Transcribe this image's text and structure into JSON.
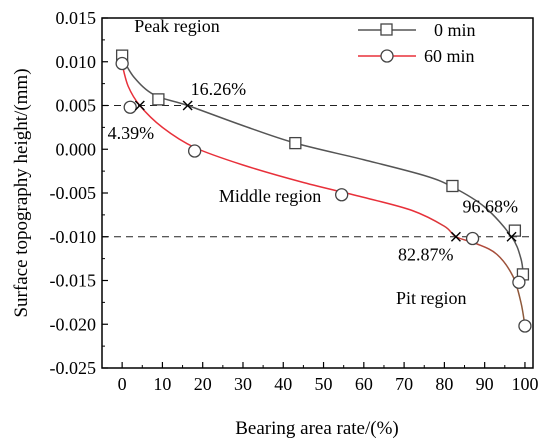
{
  "chart_data": {
    "type": "scatter",
    "xlabel": "Bearing area rate/(%)",
    "ylabel": "Surface topography height/(mm)",
    "xlim": [
      -5,
      102
    ],
    "ylim": [
      -0.025,
      0.015
    ],
    "xticks": [
      0,
      10,
      20,
      30,
      40,
      50,
      60,
      70,
      80,
      90,
      100
    ],
    "yticks": [
      0.015,
      0.01,
      0.005,
      0.0,
      -0.005,
      -0.01,
      -0.015,
      -0.02,
      -0.025
    ],
    "ytick_labels": [
      "0.015",
      "0.010",
      "0.005",
      "0.000",
      "-0.005",
      "-0.010",
      "-0.015",
      "-0.020",
      "-0.025"
    ],
    "grid": false,
    "legend": {
      "position": "top-right"
    },
    "reference_lines": [
      0.005,
      -0.01
    ],
    "series": [
      {
        "name": "0 min",
        "marker": "square",
        "color": "#555555",
        "points": [
          [
            0,
            0.0107
          ],
          [
            9,
            0.0057
          ],
          [
            43,
            0.0007
          ],
          [
            82,
            -0.0042
          ],
          [
            97.5,
            -0.0093
          ],
          [
            99.5,
            -0.0143
          ]
        ],
        "curve": [
          [
            0,
            0.0105
          ],
          [
            3,
            0.0082
          ],
          [
            8,
            0.0062
          ],
          [
            16.26,
            0.005
          ],
          [
            30,
            0.0027
          ],
          [
            43,
            0.0007
          ],
          [
            60,
            -0.0012
          ],
          [
            75,
            -0.003
          ],
          [
            82,
            -0.0043
          ],
          [
            90,
            -0.0066
          ],
          [
            96.68,
            -0.01
          ],
          [
            99,
            -0.0125
          ],
          [
            99.6,
            -0.0145
          ]
        ]
      },
      {
        "name": "60 min",
        "marker": "circle",
        "color": "#e8303a",
        "points": [
          [
            0,
            0.0098
          ],
          [
            2,
            0.0048
          ],
          [
            18,
            -0.0002
          ],
          [
            54.5,
            -0.0052
          ],
          [
            87,
            -0.0102
          ],
          [
            98.5,
            -0.0152
          ],
          [
            100,
            -0.0202
          ]
        ],
        "curve": [
          [
            0,
            0.0097
          ],
          [
            1.5,
            0.0072
          ],
          [
            4.39,
            0.005
          ],
          [
            10,
            0.0025
          ],
          [
            18,
            0.0002
          ],
          [
            30,
            -0.0018
          ],
          [
            45,
            -0.0038
          ],
          [
            60,
            -0.0055
          ],
          [
            72,
            -0.007
          ],
          [
            80,
            -0.0088
          ],
          [
            82.87,
            -0.01
          ],
          [
            88,
            -0.0108
          ],
          [
            93,
            -0.012
          ],
          [
            97,
            -0.0145
          ],
          [
            99,
            -0.0175
          ],
          [
            100,
            -0.0202
          ]
        ]
      }
    ],
    "intersection_markers": [
      [
        4.39,
        0.005
      ],
      [
        16.26,
        0.005
      ],
      [
        82.87,
        -0.01
      ],
      [
        96.68,
        -0.01
      ]
    ],
    "annotations": [
      {
        "id": "peak",
        "text": "Peak region",
        "x": 3,
        "y": 0.0134
      },
      {
        "id": "middle",
        "text": "Middle region",
        "x": 24,
        "y": -0.006
      },
      {
        "id": "pit",
        "text": "Pit region",
        "x": 68,
        "y": -0.0177
      },
      {
        "id": "p16",
        "text": "16.26%",
        "x": 17,
        "y": 0.0062
      },
      {
        "id": "p4",
        "text": "4.39%",
        "x": -3.6,
        "y": 0.0012
      },
      {
        "id": "p82",
        "text": "82.87%",
        "x": 68.5,
        "y": -0.0127
      },
      {
        "id": "p96",
        "text": "96.68%",
        "x": 84.5,
        "y": -0.0072
      }
    ]
  }
}
